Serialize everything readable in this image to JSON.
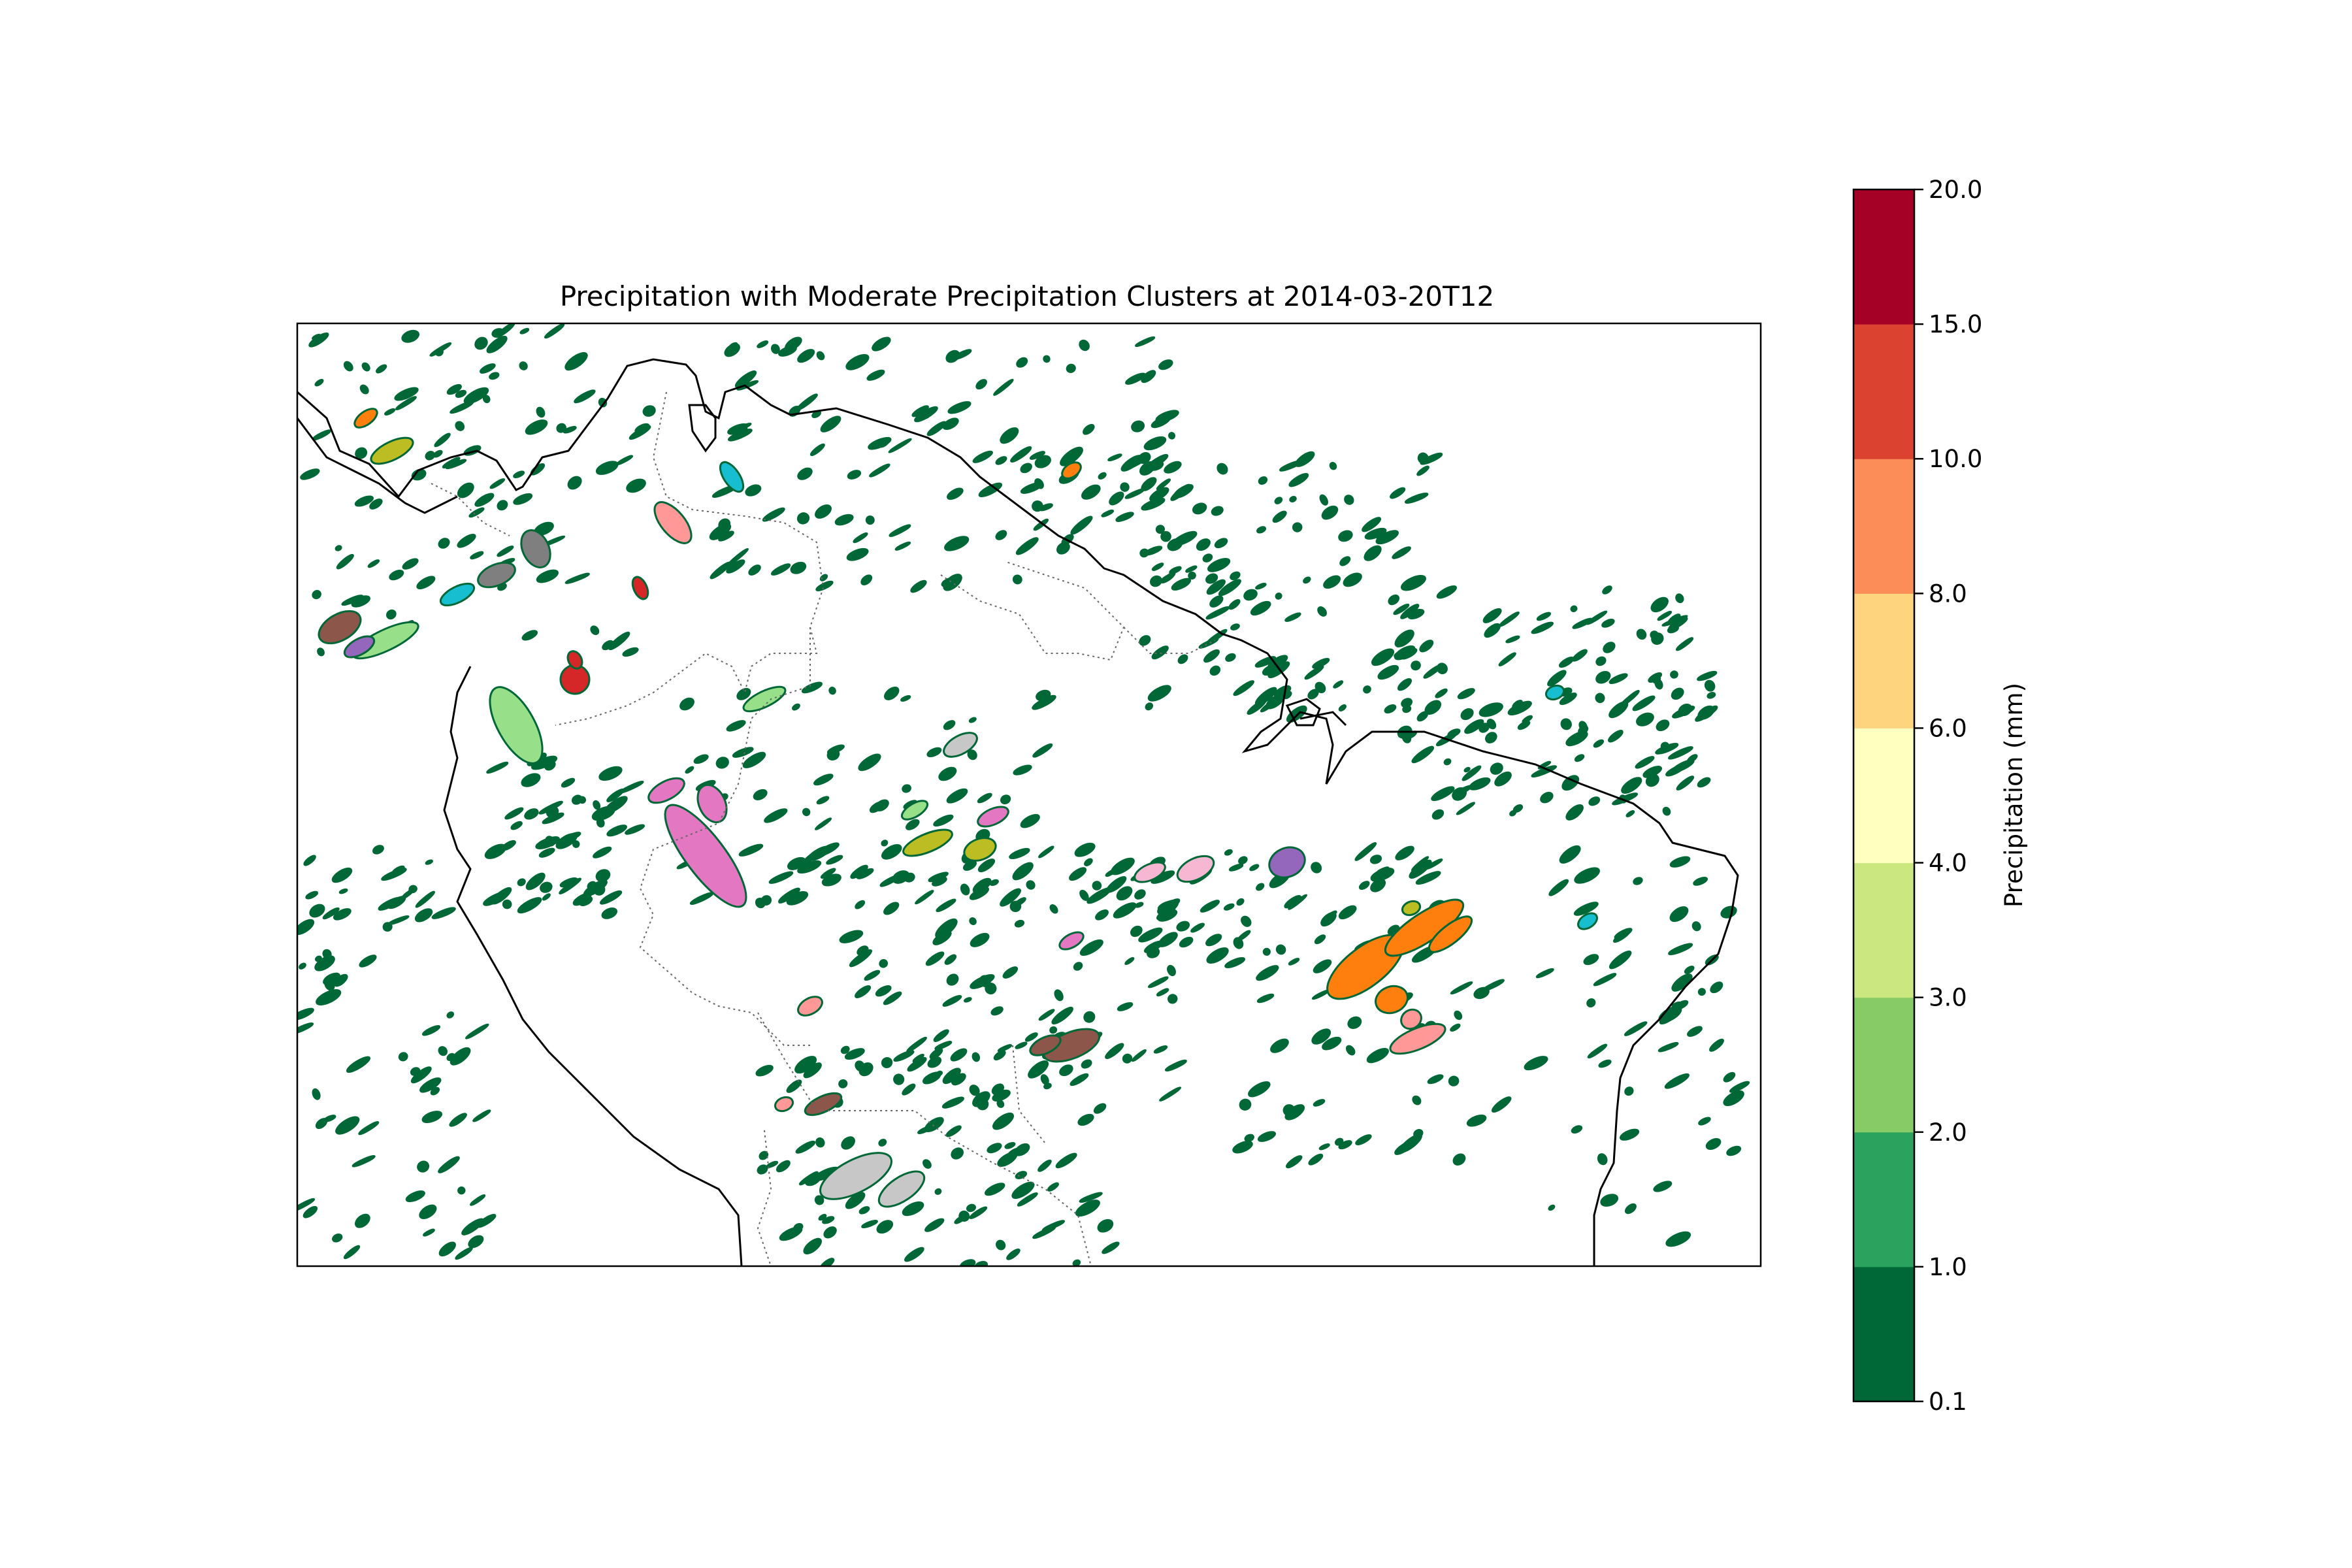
{
  "title": "Precipitation with Moderate Precipitation Clusters at 2014-03-20T12",
  "colorbar": {
    "label": "Precipitation (mm)",
    "ticks": [
      "0.1",
      "1.0",
      "2.0",
      "3.0",
      "4.0",
      "6.0",
      "8.0",
      "10.0",
      "15.0",
      "20.0"
    ],
    "colors": [
      "#006837",
      "#2ca25f",
      "#86cb66",
      "#cbe77f",
      "#ffffc0",
      "#fed47f",
      "#fc8d59",
      "#dc4230",
      "#a50026"
    ]
  },
  "cluster_colors": [
    "#e377c2",
    "#7f7f7f",
    "#bcbd22",
    "#17becf",
    "#9467bd",
    "#8c564b",
    "#ff7f0e",
    "#d62728",
    "#ff9896",
    "#c7c7c7",
    "#f7b6d2",
    "#98df8a"
  ],
  "map_colors": {
    "coastline": "#000000",
    "borders": "#666666"
  }
}
